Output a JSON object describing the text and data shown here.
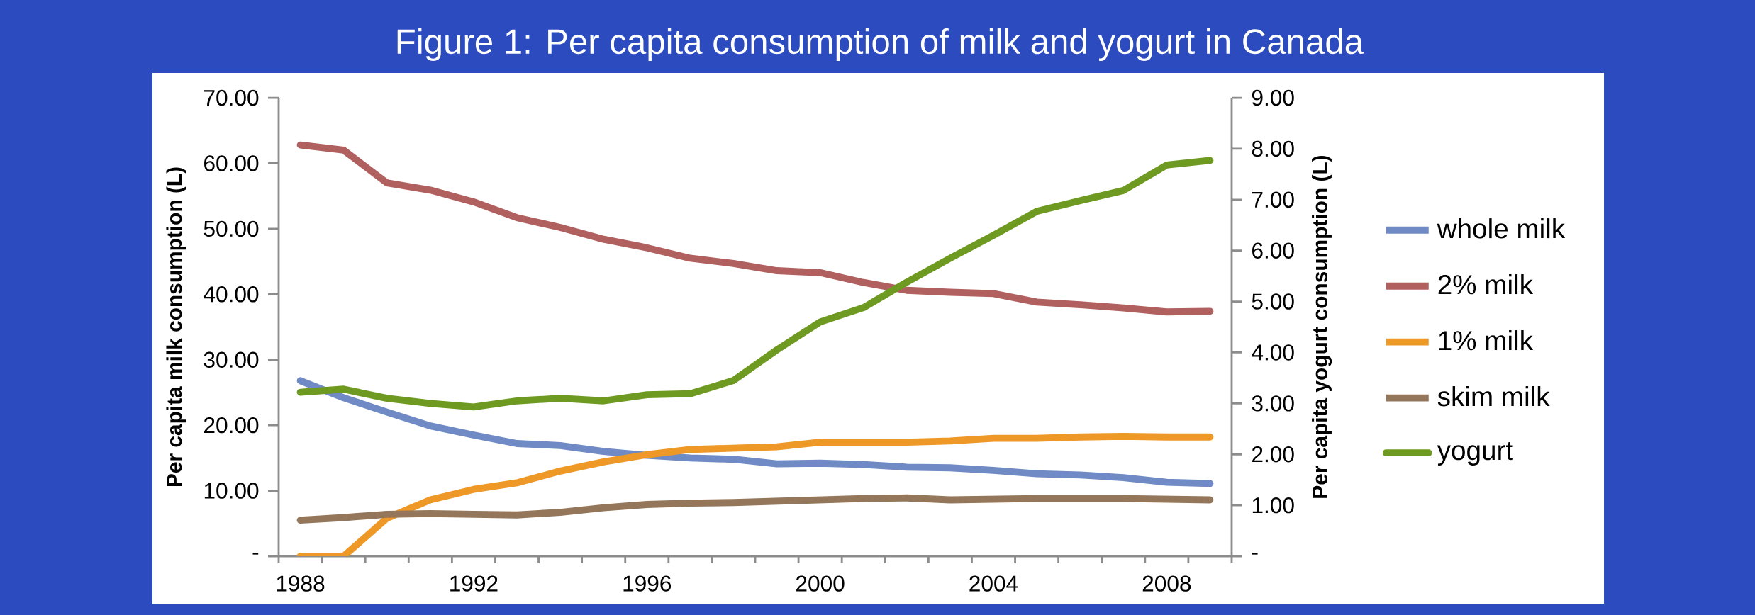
{
  "chart_data": {
    "type": "line",
    "title": "Figure 1: Per capita consumption of milk and yogurt in Canada",
    "ylabel": "Per capita milk consumption (L)",
    "y2label": "Per capita yogurt consumption (L)",
    "categories": [
      "1988",
      null,
      null,
      null,
      "1992",
      null,
      null,
      null,
      "1996",
      null,
      null,
      null,
      "2000",
      null,
      null,
      null,
      "2004",
      null,
      null,
      null,
      "2008",
      null
    ],
    "ylim": [
      0,
      70
    ],
    "yticks": [
      {
        "value": 0,
        "label": "-"
      },
      {
        "value": 10,
        "label": "10.00"
      },
      {
        "value": 20,
        "label": "20.00"
      },
      {
        "value": 30,
        "label": "30.00"
      },
      {
        "value": 40,
        "label": "40.00"
      },
      {
        "value": 50,
        "label": "50.00"
      },
      {
        "value": 60,
        "label": "60.00"
      },
      {
        "value": 70,
        "label": "70.00"
      }
    ],
    "y2lim": [
      0,
      9
    ],
    "y2ticks": [
      {
        "value": 0,
        "label": "-"
      },
      {
        "value": 1,
        "label": "1.00"
      },
      {
        "value": 2,
        "label": "2.00"
      },
      {
        "value": 3,
        "label": "3.00"
      },
      {
        "value": 4,
        "label": "4.00"
      },
      {
        "value": 5,
        "label": "5.00"
      },
      {
        "value": 6,
        "label": "6.00"
      },
      {
        "value": 7,
        "label": "7.00"
      },
      {
        "value": 8,
        "label": "8.00"
      },
      {
        "value": 9,
        "label": "9.00"
      }
    ],
    "legend": "right",
    "series": [
      {
        "name": "whole milk",
        "color": "#6f8ac4",
        "values": [
          26.8,
          24.2,
          22.0,
          19.9,
          18.5,
          17.2,
          16.9,
          16.0,
          15.4,
          15.0,
          14.8,
          14.1,
          14.2,
          14.0,
          13.6,
          13.5,
          13.1,
          12.6,
          12.4,
          12.0,
          11.3,
          11.1
        ]
      },
      {
        "name": "2% milk",
        "color": "#b0605e",
        "values": [
          62.8,
          62.0,
          57.0,
          55.9,
          54.1,
          51.7,
          50.2,
          48.4,
          47.1,
          45.5,
          44.7,
          43.6,
          43.3,
          41.8,
          40.6,
          40.3,
          40.1,
          38.8,
          38.4,
          37.9,
          37.3,
          37.4
        ]
      },
      {
        "name": "1% milk",
        "color": "#ee9827",
        "values": [
          0,
          0,
          5.8,
          8.6,
          10.2,
          11.2,
          13.0,
          14.4,
          15.5,
          16.3,
          16.5,
          16.7,
          17.4,
          17.4,
          17.4,
          17.6,
          18.0,
          18.0,
          18.2,
          18.3,
          18.2,
          18.2
        ]
      },
      {
        "name": "skim milk",
        "color": "#94775a",
        "values": [
          5.5,
          5.9,
          6.4,
          6.5,
          6.4,
          6.3,
          6.7,
          7.4,
          7.9,
          8.1,
          8.2,
          8.4,
          8.6,
          8.8,
          8.9,
          8.6,
          8.7,
          8.8,
          8.8,
          8.8,
          8.7,
          8.6
        ]
      },
      {
        "name": "yogurt",
        "color": "#6f9a22",
        "axis": "y2",
        "values": [
          3.22,
          3.28,
          3.1,
          3.0,
          2.93,
          3.05,
          3.1,
          3.05,
          3.17,
          3.19,
          3.45,
          4.05,
          4.6,
          4.88,
          5.38,
          5.85,
          6.3,
          6.77,
          6.98,
          7.18,
          7.68,
          7.77
        ]
      }
    ]
  }
}
